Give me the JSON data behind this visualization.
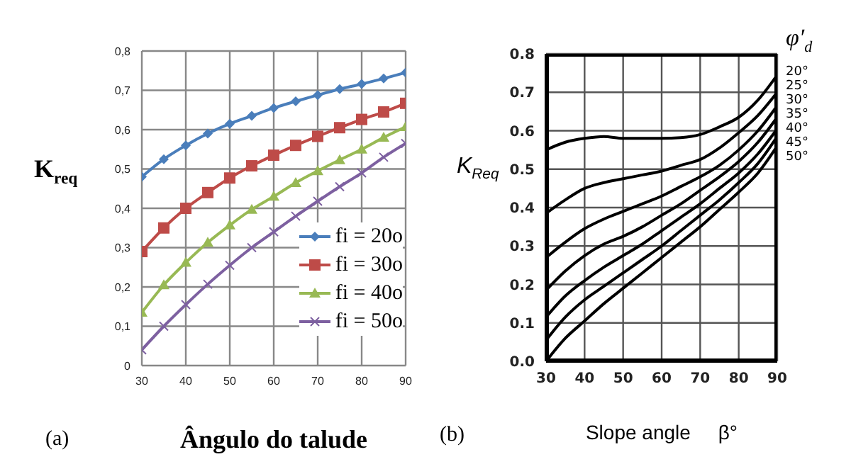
{
  "chart_data": [
    {
      "type": "line",
      "xlabel": "Ângulo do talude",
      "ylabel": "K$_{req}$",
      "x": [
        30,
        35,
        40,
        45,
        50,
        55,
        60,
        65,
        70,
        75,
        80,
        85,
        90
      ],
      "xlim": [
        30,
        90
      ],
      "xticks": [
        30,
        40,
        50,
        60,
        70,
        80,
        90
      ],
      "ylim": [
        0,
        0.8
      ],
      "yticks": [
        {
          "value": 0,
          "label": "0"
        },
        {
          "value": 0.1,
          "label": "0,1"
        },
        {
          "value": 0.2,
          "label": "0,2"
        },
        {
          "value": 0.3,
          "label": "0,3"
        },
        {
          "value": 0.4,
          "label": "0,4"
        },
        {
          "value": 0.5,
          "label": "0,5"
        },
        {
          "value": 0.6,
          "label": "0,6"
        },
        {
          "value": 0.7,
          "label": "0,7"
        },
        {
          "value": 0.8,
          "label": "0,8"
        }
      ],
      "grid": true,
      "legend": "right",
      "annotations": [
        "(a)"
      ],
      "series": [
        {
          "name": "fi = 20o",
          "color": "#4a7ebb",
          "marker": "diamond",
          "values": [
            0.48,
            0.525,
            0.56,
            0.59,
            0.615,
            0.635,
            0.655,
            0.672,
            0.688,
            0.703,
            0.716,
            0.73,
            0.745
          ]
        },
        {
          "name": "fi = 30o",
          "color": "#be4b48",
          "marker": "square",
          "values": [
            0.29,
            0.35,
            0.4,
            0.44,
            0.477,
            0.508,
            0.535,
            0.56,
            0.583,
            0.605,
            0.626,
            0.645,
            0.667
          ]
        },
        {
          "name": "fi = 40o",
          "color": "#98b954",
          "marker": "triangle",
          "values": [
            0.135,
            0.205,
            0.262,
            0.313,
            0.357,
            0.397,
            0.43,
            0.465,
            0.495,
            0.523,
            0.55,
            0.58,
            0.607
          ]
        },
        {
          "name": "fi = 50o",
          "color": "#7d60a0",
          "marker": "cross",
          "values": [
            0.04,
            0.1,
            0.155,
            0.207,
            0.255,
            0.3,
            0.34,
            0.38,
            0.418,
            0.455,
            0.49,
            0.53,
            0.565
          ]
        }
      ]
    },
    {
      "type": "line",
      "xlabel": "Slope angle     β°",
      "ylabel": "K$_{Req}$",
      "legend_title": "φ′$_{d}$",
      "x": [
        30,
        35,
        40,
        45,
        50,
        55,
        60,
        65,
        70,
        75,
        80,
        85,
        90
      ],
      "xlim": [
        30,
        90
      ],
      "xticks": [
        30,
        40,
        50,
        60,
        70,
        80,
        90
      ],
      "ylim": [
        0,
        0.8
      ],
      "yticks": [
        {
          "value": 0,
          "label": "0.0"
        },
        {
          "value": 0.1,
          "label": "0.1"
        },
        {
          "value": 0.2,
          "label": "0.2"
        },
        {
          "value": 0.3,
          "label": "0.3"
        },
        {
          "value": 0.4,
          "label": "0.4"
        },
        {
          "value": 0.5,
          "label": "0.5"
        },
        {
          "value": 0.6,
          "label": "0.6"
        },
        {
          "value": 0.7,
          "label": "0.7"
        },
        {
          "value": 0.8,
          "label": "0.8"
        }
      ],
      "grid": true,
      "legend": "top right",
      "marker": "none",
      "annotations": [
        "(b)"
      ],
      "series": [
        {
          "name": "20°",
          "color": "#000000",
          "values": [
            0.55,
            0.57,
            0.58,
            0.585,
            0.58,
            0.58,
            0.58,
            0.582,
            0.59,
            0.61,
            0.635,
            0.68,
            0.745
          ]
        },
        {
          "name": "25°",
          "color": "#000000",
          "values": [
            0.385,
            0.42,
            0.45,
            0.465,
            0.475,
            0.485,
            0.495,
            0.51,
            0.525,
            0.555,
            0.595,
            0.64,
            0.7
          ]
        },
        {
          "name": "30°",
          "color": "#000000",
          "values": [
            0.27,
            0.31,
            0.345,
            0.37,
            0.39,
            0.41,
            0.43,
            0.455,
            0.48,
            0.51,
            0.55,
            0.6,
            0.665
          ]
        },
        {
          "name": "35°",
          "color": "#000000",
          "values": [
            0.185,
            0.235,
            0.275,
            0.305,
            0.325,
            0.35,
            0.38,
            0.41,
            0.445,
            0.48,
            0.52,
            0.57,
            0.635
          ]
        },
        {
          "name": "40°",
          "color": "#000000",
          "values": [
            0.115,
            0.17,
            0.21,
            0.245,
            0.275,
            0.305,
            0.34,
            0.375,
            0.41,
            0.45,
            0.49,
            0.54,
            0.605
          ]
        },
        {
          "name": "45°",
          "color": "#000000",
          "values": [
            0.055,
            0.115,
            0.16,
            0.195,
            0.23,
            0.265,
            0.3,
            0.34,
            0.38,
            0.42,
            0.465,
            0.515,
            0.585
          ]
        },
        {
          "name": "50°",
          "color": "#000000",
          "values": [
            0.0,
            0.06,
            0.105,
            0.15,
            0.19,
            0.23,
            0.27,
            0.31,
            0.35,
            0.395,
            0.44,
            0.49,
            0.56
          ]
        }
      ]
    }
  ]
}
